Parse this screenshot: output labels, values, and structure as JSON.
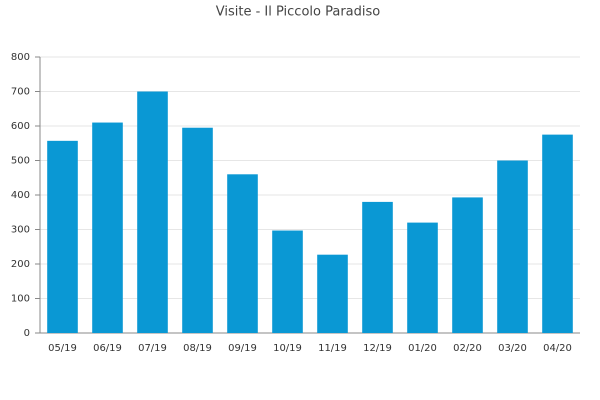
{
  "chart_data": {
    "type": "bar",
    "title": "Visite - Il Piccolo Paradiso",
    "categories": [
      "05/19",
      "06/19",
      "07/19",
      "08/19",
      "09/19",
      "10/19",
      "11/19",
      "12/19",
      "01/20",
      "02/20",
      "03/20",
      "04/20"
    ],
    "values": [
      557,
      610,
      700,
      595,
      460,
      297,
      227,
      380,
      320,
      393,
      500,
      575
    ],
    "color": "#0a98d4",
    "ylim": [
      0,
      800
    ],
    "yticks": [
      0,
      100,
      200,
      300,
      400,
      500,
      600,
      700,
      800
    ],
    "grid": true
  }
}
